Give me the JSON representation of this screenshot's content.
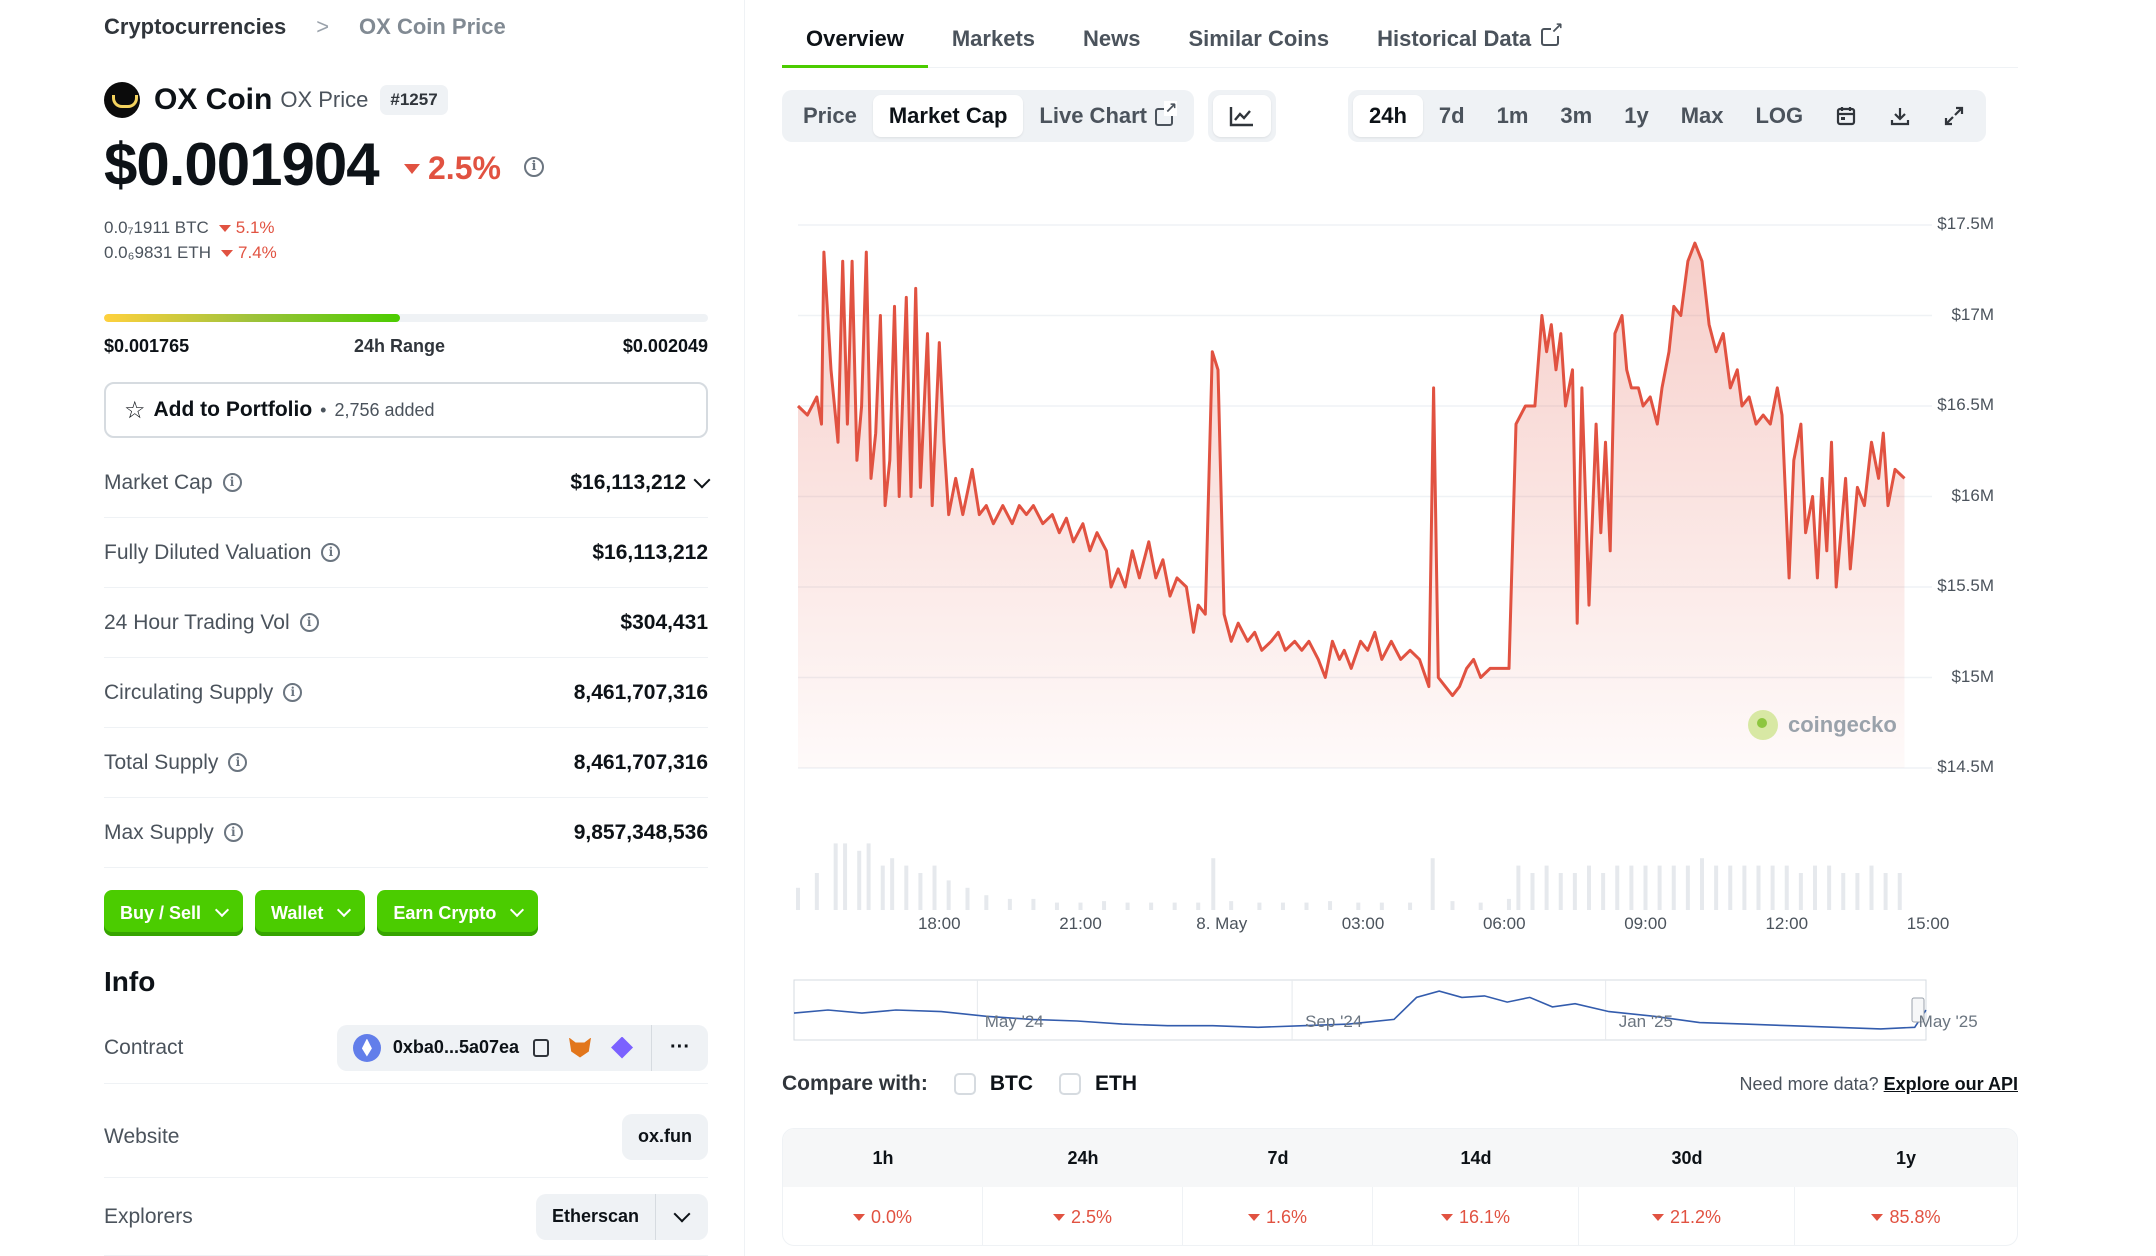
{
  "breadcrumb": {
    "root": "Cryptocurrencies",
    "separator": ">",
    "current": "OX Coin Price"
  },
  "coin": {
    "name": "OX Coin",
    "sub": "OX Price",
    "rank": "#1257",
    "price": "$0.001904",
    "change": "2.5%"
  },
  "conversions": [
    {
      "value": "0.0₇1911 BTC",
      "change": "5.1%"
    },
    {
      "value": "0.0₆9831 ETH",
      "change": "7.4%"
    }
  ],
  "range": {
    "low": "$0.001765",
    "label": "24h Range",
    "high": "$0.002049",
    "position": 0.49
  },
  "portfolio": {
    "label": "Add to Portfolio",
    "dot": "•",
    "count": "2,756 added"
  },
  "stats": [
    {
      "label": "Market Cap",
      "value": "$16,113,212",
      "dropdown": true
    },
    {
      "label": "Fully Diluted Valuation",
      "value": "$16,113,212"
    },
    {
      "label": "24 Hour Trading Vol",
      "value": "$304,431"
    },
    {
      "label": "Circulating Supply",
      "value": "8,461,707,316"
    },
    {
      "label": "Total Supply",
      "value": "8,461,707,316"
    },
    {
      "label": "Max Supply",
      "value": "9,857,348,536"
    }
  ],
  "actions": [
    "Buy / Sell",
    "Wallet",
    "Earn Crypto"
  ],
  "info": {
    "heading": "Info",
    "contract": {
      "label": "Contract",
      "address": "0xba0...5a07ea",
      "more": "···"
    },
    "website": {
      "label": "Website",
      "value": "ox.fun"
    },
    "explorers": {
      "label": "Explorers",
      "value": "Etherscan"
    }
  },
  "tabs": [
    "Overview",
    "Markets",
    "News",
    "Similar Coins",
    "Historical Data"
  ],
  "chart_modes": [
    "Price",
    "Market Cap",
    "Live Chart"
  ],
  "ranges": [
    "24h",
    "7d",
    "1m",
    "3m",
    "1y",
    "Max",
    "LOG"
  ],
  "icons": {
    "line_chart": "line-chart-icon",
    "calendar": "calendar-icon",
    "download": "download-icon",
    "expand": "expand-icon"
  },
  "colors": {
    "accent": "#4bcc00",
    "negative": "#e15241",
    "line": "#e15241"
  },
  "watermark": "coingecko",
  "compare": {
    "label": "Compare with:",
    "options": [
      "BTC",
      "ETH"
    ]
  },
  "api": {
    "text": "Need more data?",
    "link": "Explore our API"
  },
  "performance": [
    {
      "period": "1h",
      "change": "0.0%"
    },
    {
      "period": "24h",
      "change": "2.5%"
    },
    {
      "period": "7d",
      "change": "1.6%"
    },
    {
      "period": "14d",
      "change": "16.1%"
    },
    {
      "period": "30d",
      "change": "21.2%"
    },
    {
      "period": "1y",
      "change": "85.8%"
    }
  ],
  "chart_data": {
    "type": "area",
    "title": "",
    "xlabel": "",
    "ylabel": "",
    "series_name": "Market Cap",
    "yticks": [
      "$17.5M",
      "$17M",
      "$16.5M",
      "$16M",
      "$15.5M",
      "$15M",
      "$14.5M"
    ],
    "ylim": [
      14.5,
      17.5
    ],
    "xticks": [
      "18:00",
      "21:00",
      "8. May",
      "03:00",
      "06:00",
      "09:00",
      "12:00",
      "15:00"
    ],
    "xlim": [
      0,
      24
    ],
    "grid": true,
    "values": [
      [
        0.0,
        16.5
      ],
      [
        0.2,
        16.45
      ],
      [
        0.4,
        16.55
      ],
      [
        0.5,
        16.4
      ],
      [
        0.55,
        17.35
      ],
      [
        0.7,
        16.7
      ],
      [
        0.85,
        16.3
      ],
      [
        0.95,
        17.3
      ],
      [
        1.05,
        16.4
      ],
      [
        1.15,
        17.3
      ],
      [
        1.25,
        16.2
      ],
      [
        1.35,
        16.5
      ],
      [
        1.45,
        17.35
      ],
      [
        1.55,
        16.1
      ],
      [
        1.65,
        16.35
      ],
      [
        1.75,
        17.0
      ],
      [
        1.85,
        15.95
      ],
      [
        1.95,
        16.2
      ],
      [
        2.05,
        17.05
      ],
      [
        2.15,
        16.0
      ],
      [
        2.3,
        17.1
      ],
      [
        2.4,
        16.0
      ],
      [
        2.5,
        17.15
      ],
      [
        2.6,
        16.05
      ],
      [
        2.75,
        16.9
      ],
      [
        2.85,
        15.95
      ],
      [
        3.0,
        16.85
      ],
      [
        3.1,
        16.3
      ],
      [
        3.2,
        15.9
      ],
      [
        3.35,
        16.1
      ],
      [
        3.5,
        15.9
      ],
      [
        3.7,
        16.15
      ],
      [
        3.85,
        15.9
      ],
      [
        4.0,
        15.95
      ],
      [
        4.15,
        15.85
      ],
      [
        4.35,
        15.95
      ],
      [
        4.55,
        15.85
      ],
      [
        4.7,
        15.95
      ],
      [
        4.85,
        15.9
      ],
      [
        5.0,
        15.95
      ],
      [
        5.2,
        15.85
      ],
      [
        5.4,
        15.9
      ],
      [
        5.55,
        15.8
      ],
      [
        5.7,
        15.88
      ],
      [
        5.85,
        15.75
      ],
      [
        6.05,
        15.85
      ],
      [
        6.2,
        15.7
      ],
      [
        6.35,
        15.8
      ],
      [
        6.55,
        15.7
      ],
      [
        6.65,
        15.5
      ],
      [
        6.8,
        15.6
      ],
      [
        6.95,
        15.5
      ],
      [
        7.1,
        15.7
      ],
      [
        7.25,
        15.55
      ],
      [
        7.45,
        15.75
      ],
      [
        7.6,
        15.55
      ],
      [
        7.75,
        15.65
      ],
      [
        7.9,
        15.45
      ],
      [
        8.05,
        15.55
      ],
      [
        8.25,
        15.5
      ],
      [
        8.4,
        15.25
      ],
      [
        8.5,
        15.4
      ],
      [
        8.65,
        15.35
      ],
      [
        8.8,
        16.8
      ],
      [
        8.92,
        16.7
      ],
      [
        9.05,
        15.35
      ],
      [
        9.2,
        15.2
      ],
      [
        9.35,
        15.3
      ],
      [
        9.55,
        15.2
      ],
      [
        9.7,
        15.25
      ],
      [
        9.85,
        15.15
      ],
      [
        10.05,
        15.2
      ],
      [
        10.2,
        15.25
      ],
      [
        10.35,
        15.15
      ],
      [
        10.55,
        15.2
      ],
      [
        10.7,
        15.15
      ],
      [
        10.85,
        15.2
      ],
      [
        11.05,
        15.1
      ],
      [
        11.2,
        15.0
      ],
      [
        11.35,
        15.2
      ],
      [
        11.5,
        15.1
      ],
      [
        11.6,
        15.15
      ],
      [
        11.75,
        15.05
      ],
      [
        11.95,
        15.2
      ],
      [
        12.1,
        15.15
      ],
      [
        12.25,
        15.25
      ],
      [
        12.4,
        15.1
      ],
      [
        12.6,
        15.2
      ],
      [
        12.8,
        15.1
      ],
      [
        13.0,
        15.15
      ],
      [
        13.2,
        15.1
      ],
      [
        13.4,
        14.95
      ],
      [
        13.5,
        16.6
      ],
      [
        13.6,
        15.0
      ],
      [
        13.75,
        14.95
      ],
      [
        13.9,
        14.9
      ],
      [
        14.05,
        14.95
      ],
      [
        14.2,
        15.05
      ],
      [
        14.35,
        15.1
      ],
      [
        14.5,
        15.0
      ],
      [
        14.7,
        15.05
      ],
      [
        14.9,
        15.05
      ],
      [
        15.1,
        15.05
      ],
      [
        15.25,
        16.4
      ],
      [
        15.45,
        16.5
      ],
      [
        15.65,
        16.5
      ],
      [
        15.8,
        17.0
      ],
      [
        15.9,
        16.8
      ],
      [
        16.0,
        16.95
      ],
      [
        16.1,
        16.7
      ],
      [
        16.2,
        16.9
      ],
      [
        16.3,
        16.5
      ],
      [
        16.45,
        16.7
      ],
      [
        16.55,
        15.3
      ],
      [
        16.65,
        16.6
      ],
      [
        16.8,
        15.4
      ],
      [
        16.95,
        16.4
      ],
      [
        17.05,
        15.8
      ],
      [
        17.15,
        16.3
      ],
      [
        17.25,
        15.7
      ],
      [
        17.35,
        16.9
      ],
      [
        17.5,
        17.0
      ],
      [
        17.6,
        16.7
      ],
      [
        17.7,
        16.6
      ],
      [
        17.85,
        16.6
      ],
      [
        17.95,
        16.5
      ],
      [
        18.1,
        16.55
      ],
      [
        18.25,
        16.4
      ],
      [
        18.35,
        16.6
      ],
      [
        18.5,
        16.8
      ],
      [
        18.6,
        17.05
      ],
      [
        18.75,
        17.0
      ],
      [
        18.9,
        17.3
      ],
      [
        19.05,
        17.4
      ],
      [
        19.2,
        17.3
      ],
      [
        19.35,
        16.95
      ],
      [
        19.5,
        16.8
      ],
      [
        19.65,
        16.9
      ],
      [
        19.8,
        16.6
      ],
      [
        19.95,
        16.7
      ],
      [
        20.05,
        16.5
      ],
      [
        20.2,
        16.55
      ],
      [
        20.35,
        16.4
      ],
      [
        20.5,
        16.45
      ],
      [
        20.65,
        16.4
      ],
      [
        20.8,
        16.6
      ],
      [
        20.9,
        16.45
      ],
      [
        21.05,
        15.55
      ],
      [
        21.15,
        16.2
      ],
      [
        21.3,
        16.4
      ],
      [
        21.4,
        15.8
      ],
      [
        21.55,
        16.0
      ],
      [
        21.65,
        15.55
      ],
      [
        21.75,
        16.1
      ],
      [
        21.85,
        15.7
      ],
      [
        21.95,
        16.3
      ],
      [
        22.05,
        15.5
      ],
      [
        22.15,
        15.8
      ],
      [
        22.25,
        16.1
      ],
      [
        22.35,
        15.6
      ],
      [
        22.5,
        16.05
      ],
      [
        22.65,
        15.95
      ],
      [
        22.8,
        16.3
      ],
      [
        22.95,
        16.1
      ],
      [
        23.05,
        16.35
      ],
      [
        23.15,
        15.95
      ],
      [
        23.3,
        16.15
      ],
      [
        23.5,
        16.1
      ]
    ],
    "volume": [
      [
        0.0,
        0.3
      ],
      [
        0.4,
        0.5
      ],
      [
        0.8,
        0.9
      ],
      [
        1.0,
        0.9
      ],
      [
        1.3,
        0.8
      ],
      [
        1.5,
        0.9
      ],
      [
        1.8,
        0.6
      ],
      [
        2.0,
        0.7
      ],
      [
        2.3,
        0.6
      ],
      [
        2.6,
        0.5
      ],
      [
        2.9,
        0.6
      ],
      [
        3.2,
        0.4
      ],
      [
        3.6,
        0.3
      ],
      [
        4.0,
        0.2
      ],
      [
        4.5,
        0.15
      ],
      [
        5.0,
        0.15
      ],
      [
        5.5,
        0.1
      ],
      [
        6.0,
        0.1
      ],
      [
        6.5,
        0.12
      ],
      [
        7.0,
        0.1
      ],
      [
        7.5,
        0.1
      ],
      [
        8.0,
        0.1
      ],
      [
        8.5,
        0.1
      ],
      [
        8.82,
        0.7
      ],
      [
        9.2,
        0.12
      ],
      [
        9.8,
        0.1
      ],
      [
        10.3,
        0.1
      ],
      [
        10.8,
        0.1
      ],
      [
        11.3,
        0.12
      ],
      [
        11.9,
        0.1
      ],
      [
        12.4,
        0.1
      ],
      [
        13.0,
        0.1
      ],
      [
        13.48,
        0.7
      ],
      [
        13.9,
        0.12
      ],
      [
        14.5,
        0.1
      ],
      [
        15.1,
        0.15
      ],
      [
        15.3,
        0.6
      ],
      [
        15.6,
        0.5
      ],
      [
        15.9,
        0.6
      ],
      [
        16.2,
        0.5
      ],
      [
        16.5,
        0.5
      ],
      [
        16.8,
        0.6
      ],
      [
        17.1,
        0.5
      ],
      [
        17.4,
        0.6
      ],
      [
        17.7,
        0.6
      ],
      [
        18.0,
        0.6
      ],
      [
        18.3,
        0.6
      ],
      [
        18.6,
        0.6
      ],
      [
        18.9,
        0.6
      ],
      [
        19.2,
        0.7
      ],
      [
        19.5,
        0.6
      ],
      [
        19.8,
        0.6
      ],
      [
        20.1,
        0.6
      ],
      [
        20.4,
        0.6
      ],
      [
        20.7,
        0.6
      ],
      [
        21.0,
        0.6
      ],
      [
        21.3,
        0.5
      ],
      [
        21.6,
        0.6
      ],
      [
        21.9,
        0.6
      ],
      [
        22.2,
        0.5
      ],
      [
        22.5,
        0.5
      ],
      [
        22.8,
        0.6
      ],
      [
        23.1,
        0.5
      ],
      [
        23.4,
        0.5
      ]
    ],
    "navigator": {
      "labels": [
        "May '24",
        "Sep '24",
        "Jan '25",
        "May '25"
      ],
      "values": [
        [
          0,
          16.8
        ],
        [
          0.03,
          16.9
        ],
        [
          0.06,
          16.8
        ],
        [
          0.09,
          16.9
        ],
        [
          0.13,
          16.85
        ],
        [
          0.17,
          16.7
        ],
        [
          0.21,
          16.6
        ],
        [
          0.25,
          16.55
        ],
        [
          0.29,
          16.45
        ],
        [
          0.33,
          16.4
        ],
        [
          0.37,
          16.4
        ],
        [
          0.41,
          16.35
        ],
        [
          0.45,
          16.4
        ],
        [
          0.49,
          16.45
        ],
        [
          0.53,
          16.6
        ],
        [
          0.55,
          17.3
        ],
        [
          0.57,
          17.5
        ],
        [
          0.59,
          17.3
        ],
        [
          0.61,
          17.35
        ],
        [
          0.63,
          17.15
        ],
        [
          0.65,
          17.3
        ],
        [
          0.67,
          17.0
        ],
        [
          0.69,
          17.1
        ],
        [
          0.72,
          16.85
        ],
        [
          0.76,
          16.7
        ],
        [
          0.8,
          16.5
        ],
        [
          0.84,
          16.45
        ],
        [
          0.88,
          16.4
        ],
        [
          0.92,
          16.35
        ],
        [
          0.96,
          16.3
        ],
        [
          0.99,
          16.35
        ],
        [
          1.0,
          16.9
        ]
      ]
    }
  }
}
